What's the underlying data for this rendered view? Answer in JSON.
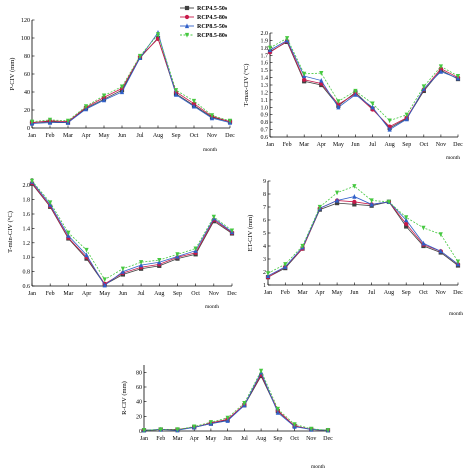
{
  "colors": [
    "#404040",
    "#c8194a",
    "#2f5fc8",
    "#46c840"
  ],
  "marker_shapes": [
    "square",
    "circle",
    "triangle",
    "inverted-triangle"
  ],
  "legend_labels": [
    "RCP4.5-50s",
    "RCP4.5-80s",
    "RCP8.5-50s",
    "RCP8.5-80s"
  ],
  "chart_data": [
    {
      "type": "line",
      "ylabel": "P-CIV (mm)",
      "xlabel": "month",
      "ylim": [
        0,
        120
      ],
      "yticks": [
        "0",
        "20",
        "40",
        "60",
        "80",
        "100",
        "120"
      ],
      "categories": [
        "Jan",
        "Feb",
        "Mar",
        "Apr",
        "May",
        "Jun",
        "Jul",
        "Aug",
        "Sep",
        "Oct",
        "Nov",
        "Dec"
      ],
      "series": [
        {
          "name": "RCP4.5-50s",
          "values": [
            6,
            7,
            6,
            22,
            32,
            42,
            78,
            100,
            38,
            25,
            12,
            7
          ]
        },
        {
          "name": "RCP4.5-80s",
          "values": [
            6,
            8,
            7,
            23,
            34,
            44,
            79,
            99,
            40,
            27,
            13,
            7
          ]
        },
        {
          "name": "RCP8.5-50s",
          "values": [
            5,
            6,
            6,
            21,
            31,
            40,
            78,
            106,
            37,
            24,
            11,
            6
          ]
        },
        {
          "name": "RCP8.5-80s",
          "values": [
            7,
            9,
            8,
            24,
            36,
            46,
            80,
            104,
            42,
            30,
            14,
            8
          ]
        }
      ]
    },
    {
      "type": "line",
      "ylabel": "T-max-CIV (°C)",
      "xlabel": "month",
      "ylim": [
        0.6,
        2.0
      ],
      "yticks": [
        "0.6",
        "0.7",
        "0.8",
        "0.9",
        "1.0",
        "1.1",
        "1.2",
        "1.3",
        "1.4",
        "1.5",
        "1.6",
        "1.7",
        "1.8",
        "1.9",
        "2.0"
      ],
      "categories": [
        "Jan",
        "Feb",
        "Mar",
        "Apr",
        "May",
        "Jun",
        "Jul",
        "Aug",
        "Sep",
        "Oct",
        "Nov",
        "Dec"
      ],
      "series": [
        {
          "values": [
            1.75,
            1.88,
            1.35,
            1.3,
            1.02,
            1.2,
            0.98,
            0.72,
            0.85,
            1.22,
            1.5,
            1.38
          ]
        },
        {
          "values": [
            1.74,
            1.89,
            1.37,
            1.32,
            1.04,
            1.18,
            0.97,
            0.74,
            0.86,
            1.24,
            1.52,
            1.4
          ]
        },
        {
          "values": [
            1.77,
            1.9,
            1.42,
            1.36,
            1.0,
            1.17,
            1.0,
            0.7,
            0.84,
            1.25,
            1.48,
            1.39
          ]
        },
        {
          "values": [
            1.8,
            1.93,
            1.45,
            1.46,
            1.08,
            1.22,
            1.05,
            0.82,
            0.9,
            1.28,
            1.55,
            1.42
          ]
        }
      ]
    },
    {
      "type": "line",
      "ylabel": "T-min-CIV (°C)",
      "xlabel": "month",
      "ylim": [
        0.6,
        2.1
      ],
      "yticks": [
        "0.6",
        "0.8",
        "1.0",
        "1.2",
        "1.4",
        "1.6",
        "1.8",
        "2.0"
      ],
      "categories": [
        "Jan",
        "Feb",
        "Mar",
        "Apr",
        "May",
        "Jun",
        "Jul",
        "Aug",
        "Sep",
        "Oct",
        "Nov",
        "Dec"
      ],
      "series": [
        {
          "values": [
            2.02,
            1.7,
            1.26,
            0.98,
            0.62,
            0.76,
            0.84,
            0.88,
            0.98,
            1.04,
            1.5,
            1.33
          ]
        },
        {
          "values": [
            2.03,
            1.71,
            1.27,
            1.0,
            0.63,
            0.78,
            0.86,
            0.9,
            1.0,
            1.06,
            1.52,
            1.34
          ]
        },
        {
          "values": [
            2.05,
            1.73,
            1.3,
            1.03,
            0.61,
            0.8,
            0.89,
            0.93,
            1.01,
            1.09,
            1.54,
            1.35
          ]
        },
        {
          "values": [
            2.06,
            1.76,
            1.34,
            1.1,
            0.69,
            0.84,
            0.93,
            0.96,
            1.04,
            1.12,
            1.56,
            1.37
          ]
        }
      ]
    },
    {
      "type": "line",
      "ylabel": "ET-CIV (mm)",
      "xlabel": "month",
      "ylim": [
        1,
        9
      ],
      "yticks": [
        "1",
        "2",
        "3",
        "4",
        "5",
        "6",
        "7",
        "8",
        "9"
      ],
      "categories": [
        "Jan",
        "Feb",
        "Mar",
        "Apr",
        "May",
        "Jun",
        "Jul",
        "Aug",
        "Sep",
        "Oct",
        "Nov",
        "Dec"
      ],
      "series": [
        {
          "values": [
            1.6,
            2.3,
            3.8,
            6.8,
            7.3,
            7.2,
            7.1,
            7.4,
            5.5,
            4.0,
            3.5,
            2.5
          ]
        },
        {
          "values": [
            1.6,
            2.4,
            3.8,
            6.9,
            7.5,
            7.4,
            7.2,
            7.4,
            5.7,
            4.1,
            3.6,
            2.6
          ]
        },
        {
          "values": [
            1.7,
            2.4,
            3.9,
            6.9,
            7.5,
            7.8,
            7.2,
            7.4,
            6.0,
            4.2,
            3.6,
            2.6
          ]
        },
        {
          "values": [
            1.9,
            2.6,
            4.0,
            7.0,
            8.1,
            8.6,
            7.5,
            7.4,
            6.2,
            5.4,
            4.9,
            2.8
          ]
        }
      ]
    },
    {
      "type": "line",
      "ylabel": "R-CIV (mm)",
      "xlabel": "month",
      "ylim": [
        0,
        90
      ],
      "yticks": [
        "0",
        "20",
        "40",
        "60",
        "80"
      ],
      "categories": [
        "Jan",
        "Feb",
        "Mar",
        "Apr",
        "May",
        "Jun",
        "Jul",
        "Aug",
        "Sep",
        "Oct",
        "Nov",
        "Dec"
      ],
      "series": [
        {
          "values": [
            1,
            2,
            2,
            5,
            10,
            15,
            35,
            75,
            27,
            7,
            2,
            1
          ]
        },
        {
          "values": [
            1,
            2,
            2,
            5,
            11,
            16,
            36,
            77,
            28,
            7,
            2,
            1
          ]
        },
        {
          "values": [
            1,
            2,
            1,
            5,
            10,
            14,
            35,
            80,
            25,
            6,
            2,
            1
          ]
        },
        {
          "values": [
            1,
            2,
            2,
            6,
            12,
            18,
            38,
            82,
            30,
            9,
            3,
            1
          ]
        }
      ]
    }
  ]
}
